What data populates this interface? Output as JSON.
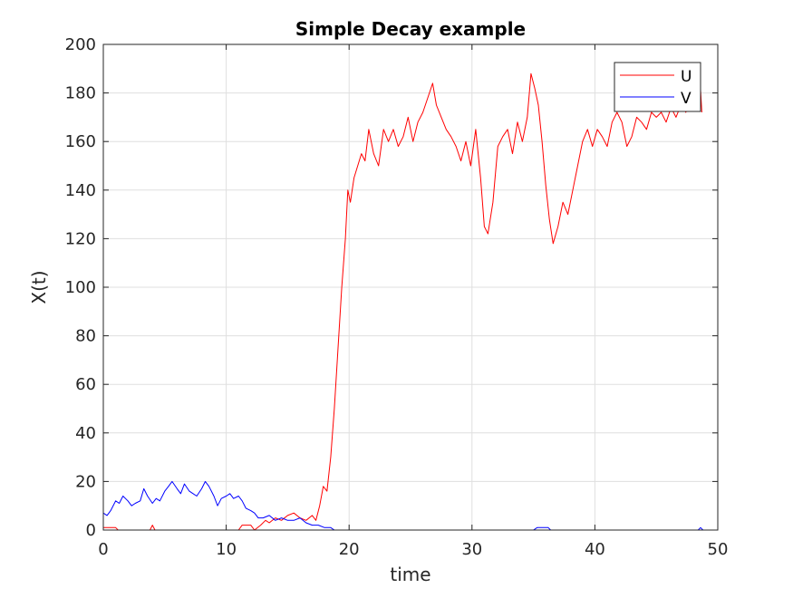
{
  "chart_data": {
    "type": "line",
    "title": "Simple Decay example",
    "xlabel": "time",
    "ylabel": "X(t)",
    "xlim": [
      0,
      50
    ],
    "ylim": [
      0,
      200
    ],
    "xticks": [
      0,
      10,
      20,
      30,
      40,
      50
    ],
    "yticks": [
      0,
      20,
      40,
      60,
      80,
      100,
      120,
      140,
      160,
      180,
      200
    ],
    "grid": true,
    "legend_position": "top-right",
    "series": [
      {
        "name": "U",
        "color": "#ff0000",
        "x": [
          0,
          1,
          1.2,
          3.8,
          4,
          4.2,
          7,
          7.2,
          11,
          11.3,
          12,
          12.3,
          12.8,
          13.2,
          13.5,
          14,
          14.5,
          15,
          15.5,
          16,
          16.5,
          17,
          17.3,
          17.6,
          17.9,
          18.2,
          18.5,
          18.8,
          19.1,
          19.4,
          19.7,
          19.9,
          20.1,
          20.4,
          20.7,
          21,
          21.3,
          21.6,
          22,
          22.4,
          22.8,
          23.2,
          23.6,
          24,
          24.4,
          24.8,
          25.2,
          25.6,
          26,
          26.4,
          26.8,
          27.1,
          27.5,
          27.9,
          28.3,
          28.7,
          29.1,
          29.5,
          29.9,
          30.3,
          30.7,
          31,
          31.3,
          31.7,
          32.1,
          32.5,
          32.9,
          33.3,
          33.7,
          34.1,
          34.5,
          34.8,
          35.1,
          35.4,
          35.7,
          36,
          36.3,
          36.6,
          37,
          37.4,
          37.8,
          38.2,
          38.6,
          39,
          39.4,
          39.8,
          40.2,
          40.6,
          41,
          41.4,
          41.8,
          42.2,
          42.6,
          43,
          43.4,
          43.8,
          44.2,
          44.6,
          45,
          45.4,
          45.8,
          46.2,
          46.6,
          47,
          47.4,
          47.8,
          48.2,
          48.5,
          48.7
        ],
        "y": [
          1,
          1,
          0,
          0,
          2,
          0,
          0,
          0,
          0,
          2,
          2,
          0,
          2,
          4,
          3,
          5,
          4,
          6,
          7,
          5,
          4,
          6,
          4,
          10,
          18,
          16,
          30,
          50,
          75,
          100,
          120,
          140,
          135,
          145,
          150,
          155,
          152,
          165,
          155,
          150,
          165,
          160,
          165,
          158,
          162,
          170,
          160,
          168,
          172,
          178,
          184,
          175,
          170,
          165,
          162,
          158,
          152,
          160,
          150,
          165,
          145,
          125,
          122,
          135,
          158,
          162,
          165,
          155,
          168,
          160,
          170,
          188,
          182,
          175,
          160,
          142,
          128,
          118,
          125,
          135,
          130,
          140,
          150,
          160,
          165,
          158,
          165,
          162,
          158,
          168,
          172,
          168,
          158,
          162,
          170,
          168,
          165,
          172,
          170,
          172,
          168,
          174,
          170,
          175,
          172,
          176,
          178,
          190,
          172
        ]
      },
      {
        "name": "V",
        "color": "#0000ff",
        "x": [
          0,
          0.3,
          0.6,
          1,
          1.3,
          1.6,
          2,
          2.3,
          2.6,
          3,
          3.3,
          3.6,
          4,
          4.3,
          4.6,
          5,
          5.3,
          5.6,
          6,
          6.3,
          6.6,
          7,
          7.3,
          7.6,
          8,
          8.3,
          8.6,
          9,
          9.3,
          9.6,
          10,
          10.3,
          10.6,
          11,
          11.3,
          11.6,
          12,
          12.3,
          12.6,
          13,
          13.5,
          14,
          14.5,
          15,
          15.5,
          16,
          16.5,
          17,
          17.5,
          18,
          18.5,
          18.8,
          19.2,
          35,
          35.3,
          36.2,
          36.4,
          48.4,
          48.6,
          48.8
        ],
        "y": [
          7,
          6,
          8,
          12,
          11,
          14,
          12,
          10,
          11,
          12,
          17,
          14,
          11,
          13,
          12,
          16,
          18,
          20,
          17,
          15,
          19,
          16,
          15,
          14,
          17,
          20,
          18,
          14,
          10,
          13,
          14,
          15,
          13,
          14,
          12,
          9,
          8,
          7,
          5,
          5,
          6,
          4,
          5,
          4,
          4,
          5,
          3,
          2,
          2,
          1,
          1,
          0,
          0,
          0,
          1,
          1,
          0,
          0,
          1,
          0
        ]
      }
    ]
  }
}
